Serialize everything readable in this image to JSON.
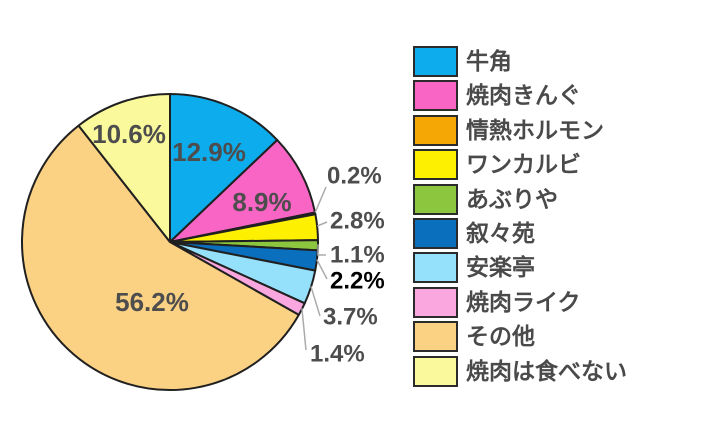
{
  "chart_data": {
    "type": "pie",
    "title": "",
    "legend_position": "right",
    "start_angle": "top",
    "direction": "clockwise",
    "unit": "%",
    "slices": [
      {
        "label": "牛角",
        "value": 12.9,
        "display": "12.9%",
        "color": "#0dacec",
        "emphasized": false
      },
      {
        "label": "焼肉きんぐ",
        "value": 8.9,
        "display": "8.9%",
        "color": "#f965c4",
        "emphasized": false
      },
      {
        "label": "情熱ホルモン",
        "value": 0.2,
        "display": "0.2%",
        "color": "#f4a705",
        "emphasized": false
      },
      {
        "label": "ワンカルビ",
        "value": 2.8,
        "display": "2.8%",
        "color": "#fdf101",
        "emphasized": false
      },
      {
        "label": "あぶりや",
        "value": 1.1,
        "display": "1.1%",
        "color": "#8cc63f",
        "emphasized": false
      },
      {
        "label": "叙々苑",
        "value": 2.2,
        "display": "2.2%",
        "color": "#0a6fbd",
        "emphasized": true
      },
      {
        "label": "安楽亭",
        "value": 3.7,
        "display": "3.7%",
        "color": "#95e0fa",
        "emphasized": false
      },
      {
        "label": "焼肉ライク",
        "value": 1.4,
        "display": "1.4%",
        "color": "#f9a7de",
        "emphasized": false
      },
      {
        "label": "その他",
        "value": 56.2,
        "display": "56.2%",
        "color": "#fbd184",
        "emphasized": false
      },
      {
        "label": "焼肉は食べない",
        "value": 10.6,
        "display": "10.6%",
        "color": "#fafa9d",
        "emphasized": false
      }
    ],
    "styles": {
      "slice_outline_color": "#202020",
      "label_color": "#4d4d4d",
      "emphasized_label_color": "#000000",
      "leader_line_color": "#ababab",
      "legend_text_color": "#4a4a4a",
      "background_color": "#ffffff"
    }
  }
}
